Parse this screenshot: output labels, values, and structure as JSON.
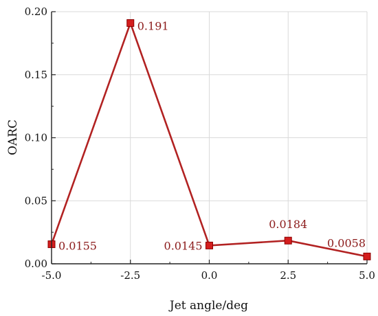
{
  "chart_data": {
    "type": "line",
    "title": "",
    "xlabel": "Jet angle/deg",
    "ylabel": "OARC",
    "xlim": [
      -5.0,
      5.0
    ],
    "ylim": [
      0.0,
      0.2
    ],
    "xticks": [
      "-5.0",
      "-2.5",
      "0.0",
      "2.5",
      "5.0"
    ],
    "yticks": [
      "0.00",
      "0.05",
      "0.10",
      "0.15",
      "0.20"
    ],
    "grid": true,
    "legend": "none",
    "series": [
      {
        "x": [
          -5.0,
          -2.5,
          0.0,
          2.5,
          5.0
        ],
        "y": [
          0.0155,
          0.191,
          0.0145,
          0.0184,
          0.0058
        ],
        "labels": [
          "0.0155",
          "0.191",
          "0.0145",
          "0.0184",
          "0.0058"
        ],
        "marker": "square",
        "line_color": "#b22222",
        "marker_color": "#d41e1e"
      }
    ],
    "text_color": "#8b1a1a"
  }
}
